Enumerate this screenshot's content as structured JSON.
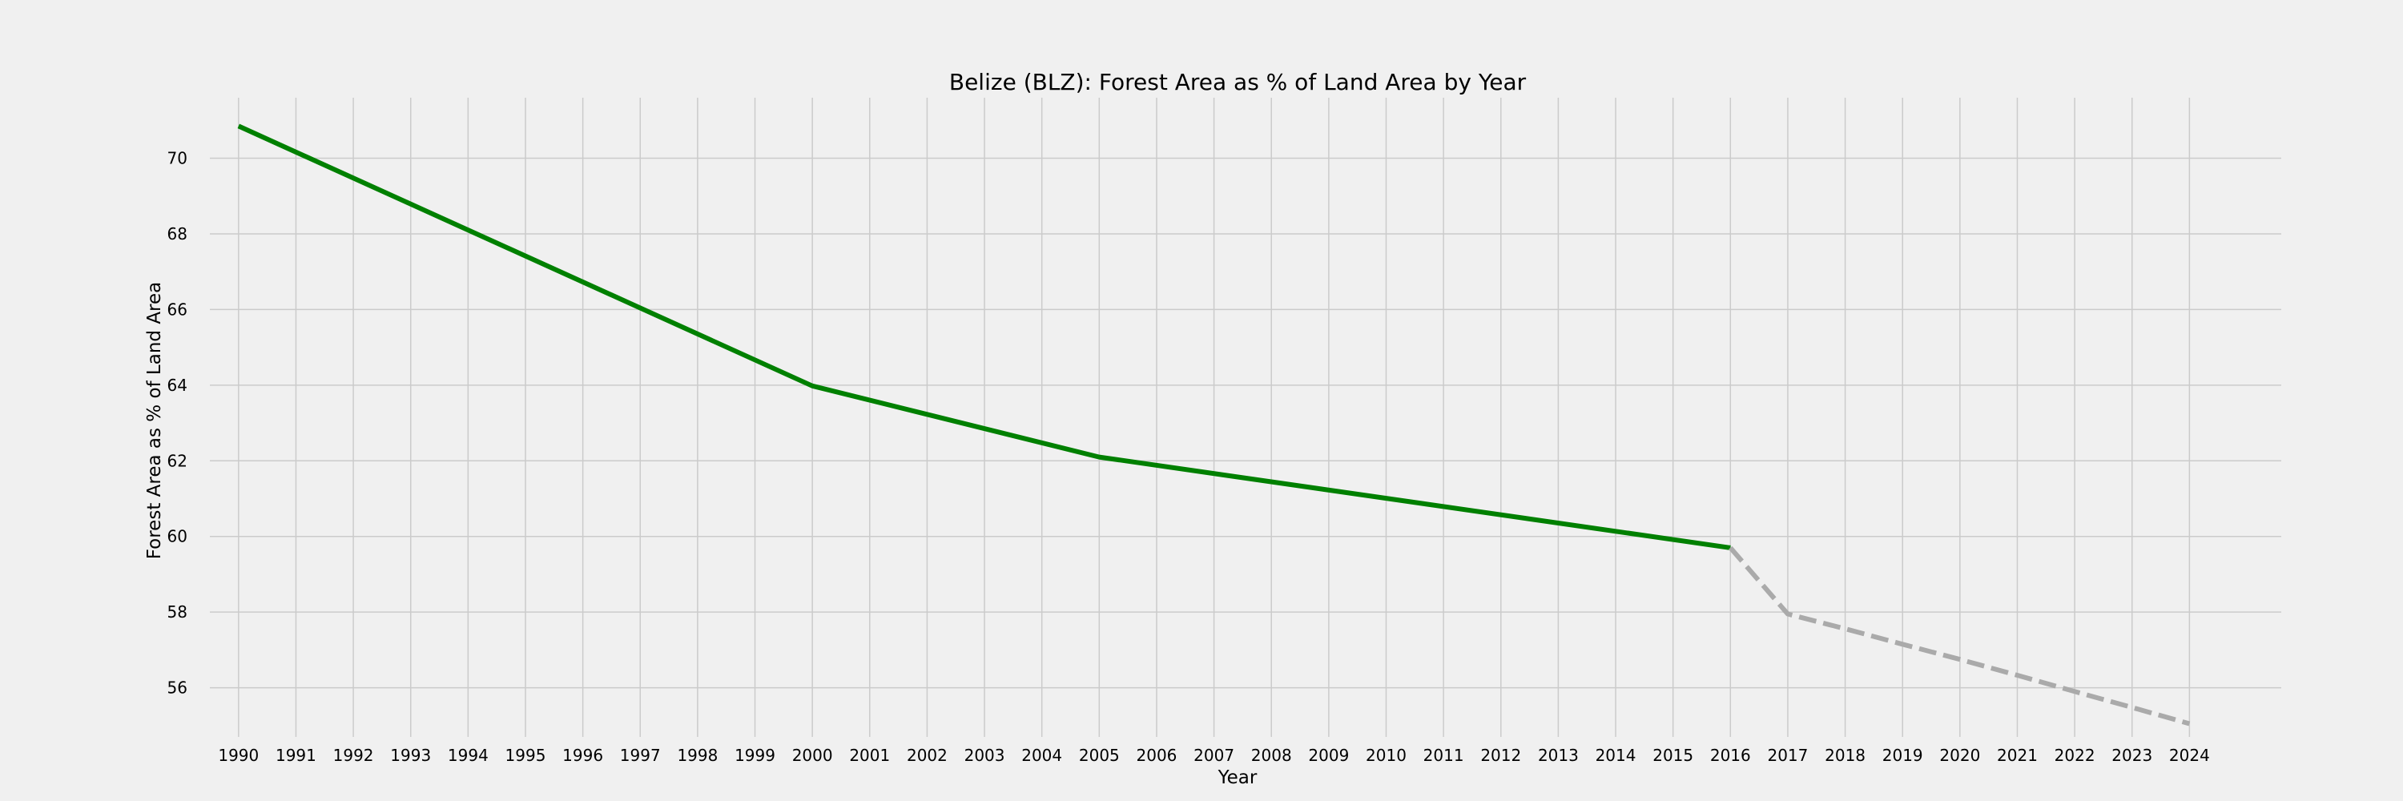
{
  "chart_data": {
    "type": "line",
    "title": "Belize (BLZ): Forest Area as % of Land Area by Year",
    "xlabel": "Year",
    "ylabel": "Forest Area as % of Land Area",
    "x_ticks": [
      1990,
      1991,
      1992,
      1993,
      1994,
      1995,
      1996,
      1997,
      1998,
      1999,
      2000,
      2001,
      2002,
      2003,
      2004,
      2005,
      2006,
      2007,
      2008,
      2009,
      2010,
      2011,
      2012,
      2013,
      2014,
      2015,
      2016,
      2017,
      2018,
      2019,
      2020,
      2021,
      2022,
      2023,
      2024
    ],
    "y_ticks": [
      56,
      58,
      60,
      62,
      64,
      66,
      68,
      70
    ],
    "xlim": [
      1989.5,
      2025.6
    ],
    "ylim": [
      54.7,
      71.6
    ],
    "grid": true,
    "series": [
      {
        "style": "solid",
        "color": "#008000",
        "x": [
          1990,
          2000,
          2005,
          2016
        ],
        "y": [
          70.85,
          63.98,
          62.1,
          59.7
        ]
      },
      {
        "style": "dashed",
        "color": "#aaaaaa",
        "x": [
          2016,
          2017,
          2018,
          2019,
          2020,
          2021,
          2022,
          2023,
          2024
        ],
        "y": [
          59.7,
          57.95,
          57.56,
          57.15,
          56.75,
          56.33,
          55.9,
          55.48,
          55.05
        ]
      }
    ]
  }
}
